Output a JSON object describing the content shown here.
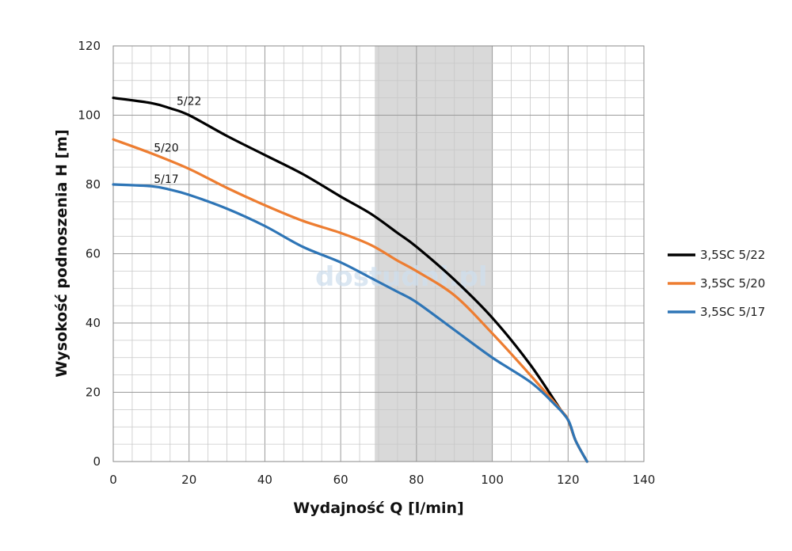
{
  "chart_data": {
    "type": "line",
    "xlabel": "Wydajność Q [l/min]",
    "ylabel": "Wysokość podnoszenia H [m]",
    "xlim": [
      0,
      140
    ],
    "ylim": [
      0,
      120
    ],
    "xticks": [
      0,
      20,
      40,
      60,
      80,
      100,
      120,
      140
    ],
    "yticks": [
      0,
      20,
      40,
      60,
      80,
      100,
      120
    ],
    "grid": true,
    "highlight_band": {
      "from": 69,
      "to": 100
    },
    "legend_position": "right",
    "watermark": "dostudni.pl",
    "series": [
      {
        "name": "3,5SC 5/22",
        "label": "5/22",
        "color": "#000000",
        "points": [
          [
            0,
            105
          ],
          [
            10,
            103.5
          ],
          [
            15,
            102
          ],
          [
            20,
            100
          ],
          [
            30,
            94
          ],
          [
            40,
            88.5
          ],
          [
            50,
            83
          ],
          [
            60,
            76.5
          ],
          [
            68,
            71.5
          ],
          [
            75,
            66
          ],
          [
            80,
            62
          ],
          [
            90,
            52.5
          ],
          [
            100,
            41.5
          ],
          [
            110,
            28
          ],
          [
            118,
            15
          ],
          [
            120,
            12
          ],
          [
            122,
            6
          ],
          [
            125,
            0
          ]
        ]
      },
      {
        "name": "3,5SC 5/20",
        "label": "5/20",
        "color": "#ed7d31",
        "points": [
          [
            0,
            93
          ],
          [
            10,
            89
          ],
          [
            20,
            84.5
          ],
          [
            30,
            79
          ],
          [
            40,
            74
          ],
          [
            50,
            69.5
          ],
          [
            60,
            66
          ],
          [
            68,
            62.5
          ],
          [
            75,
            58
          ],
          [
            80,
            55
          ],
          [
            90,
            48
          ],
          [
            100,
            37
          ],
          [
            110,
            25
          ],
          [
            118,
            15
          ],
          [
            120,
            12
          ],
          [
            122,
            6
          ],
          [
            125,
            0
          ]
        ]
      },
      {
        "name": "3,5SC 5/17",
        "label": "5/17",
        "color": "#2e75b6",
        "points": [
          [
            0,
            80
          ],
          [
            10,
            79.5
          ],
          [
            15,
            78.5
          ],
          [
            20,
            77
          ],
          [
            30,
            73
          ],
          [
            40,
            68
          ],
          [
            50,
            62
          ],
          [
            60,
            57.5
          ],
          [
            68,
            53
          ],
          [
            75,
            49
          ],
          [
            80,
            46
          ],
          [
            90,
            38
          ],
          [
            100,
            30
          ],
          [
            110,
            23
          ],
          [
            116,
            17
          ],
          [
            120,
            12
          ],
          [
            122,
            6
          ],
          [
            125,
            0
          ]
        ]
      }
    ]
  }
}
